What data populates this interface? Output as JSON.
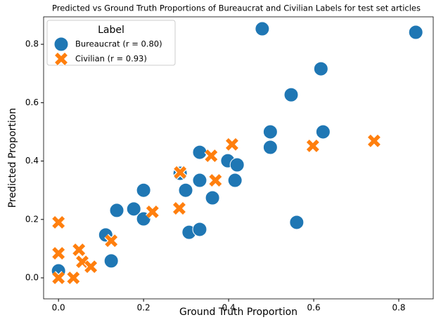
{
  "chart_data": {
    "type": "scatter",
    "title": "Predicted vs Ground Truth Proportions of Bureaucrat and Civilian Labels for test set articles",
    "x_label": "Ground Truth Proportion",
    "y_label": "Predicted Proportion",
    "legend_title": "Label",
    "legend": "upper left",
    "xlim": [
      -0.035,
      0.881
    ],
    "ylim": [
      -0.072,
      0.894
    ],
    "xticks": [
      {
        "value": 0,
        "label": "0.0"
      },
      0.2,
      0.4,
      0.6,
      0.8
    ],
    "yticks": [
      {
        "value": 0,
        "label": "0.0"
      },
      0.2,
      0.4,
      0.6,
      0.8
    ],
    "series": [
      {
        "name": "Bureaucrat (r = 0.80)",
        "color": "#1f77b4",
        "marker": "circle",
        "x": [
          0.479,
          0.84,
          0.617,
          0.547,
          0.498,
          0.622,
          0.498,
          0.332,
          0.398,
          0.42,
          0.286,
          0.332,
          0.415,
          0.2,
          0.299,
          0.362,
          0.137,
          0.177,
          0.2,
          0.56,
          0.111,
          0.307,
          0.332,
          0.124,
          0
        ],
        "values": [
          0.853,
          0.841,
          0.716,
          0.627,
          0.5,
          0.5,
          0.447,
          0.43,
          0.401,
          0.387,
          0.358,
          0.334,
          0.334,
          0.3,
          0.3,
          0.274,
          0.231,
          0.236,
          0.202,
          0.19,
          0.147,
          0.156,
          0.166,
          0.058,
          0.024
        ]
      },
      {
        "name": "Civilian (r = 0.93)",
        "color": "#ff7f0e",
        "marker": "x",
        "x": [
          0,
          0,
          0,
          0.035,
          0.048,
          0.056,
          0.076,
          0.124,
          0.221,
          0.286,
          0.284,
          0.359,
          0.369,
          0.408,
          0.598,
          0.742
        ],
        "values": [
          0.19,
          0.084,
          0,
          0,
          0.096,
          0.055,
          0.038,
          0.127,
          0.226,
          0.361,
          0.238,
          0.418,
          0.334,
          0.457,
          0.452,
          0.469
        ]
      }
    ]
  }
}
